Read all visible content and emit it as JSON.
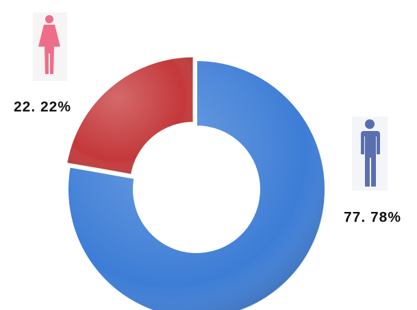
{
  "chart_data": {
    "type": "donut",
    "categories": [
      null,
      null
    ],
    "series": [
      {
        "name": null,
        "values": [
          77.78,
          22.22
        ],
        "value_labels": [
          "77. 78%",
          "22. 22%"
        ],
        "colors": [
          "#3d7dd6",
          "#c4383a"
        ]
      }
    ]
  }
}
